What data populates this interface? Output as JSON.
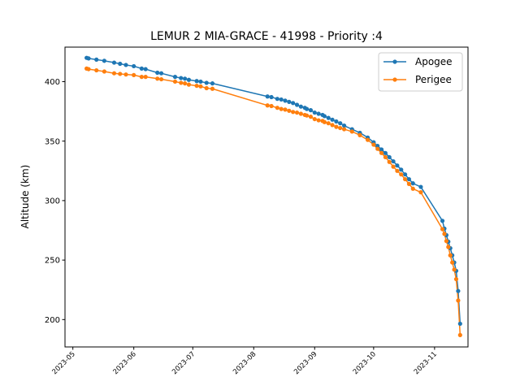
{
  "chart_data": {
    "type": "line",
    "title": "LEMUR 2 MIA-GRACE - 41998 - Priority :4",
    "xlabel": "",
    "ylabel": "Altitude (km)",
    "x_type": "date",
    "xlim": [
      "2023-04-27",
      "2023-11-18"
    ],
    "ylim": [
      177,
      429
    ],
    "x_ticks": [
      "2023-05",
      "2023-06",
      "2023-07",
      "2023-08",
      "2023-09",
      "2023-10",
      "2023-11"
    ],
    "y_ticks": [
      200,
      250,
      300,
      350,
      400
    ],
    "grid": false,
    "legend": "top-right",
    "series": [
      {
        "name": "Apogee",
        "color": "#1f77b4",
        "points": [
          [
            "2023-05-08",
            420
          ],
          [
            "2023-05-09",
            419.5
          ],
          [
            "2023-05-13",
            418.5
          ],
          [
            "2023-05-17",
            417.5
          ],
          [
            "2023-05-22",
            416
          ],
          [
            "2023-05-25",
            415
          ],
          [
            "2023-05-28",
            414
          ],
          [
            "2023-06-01",
            413
          ],
          [
            "2023-06-05",
            411
          ],
          [
            "2023-06-07",
            410.5
          ],
          [
            "2023-06-13",
            407.5
          ],
          [
            "2023-06-15",
            407
          ],
          [
            "2023-06-22",
            404
          ],
          [
            "2023-06-25",
            403
          ],
          [
            "2023-06-27",
            402.5
          ],
          [
            "2023-06-29",
            401.5
          ],
          [
            "2023-07-03",
            400.5
          ],
          [
            "2023-07-05",
            400
          ],
          [
            "2023-07-08",
            399
          ],
          [
            "2023-07-11",
            398.5
          ],
          [
            "2023-08-08",
            387.5
          ],
          [
            "2023-08-10",
            387
          ],
          [
            "2023-08-13",
            385.5
          ],
          [
            "2023-08-15",
            385
          ],
          [
            "2023-08-17",
            384
          ],
          [
            "2023-08-19",
            383
          ],
          [
            "2023-08-21",
            382
          ],
          [
            "2023-08-23",
            380.5
          ],
          [
            "2023-08-25",
            379
          ],
          [
            "2023-08-27",
            378
          ],
          [
            "2023-08-28",
            377
          ],
          [
            "2023-08-30",
            376
          ],
          [
            "2023-09-01",
            374
          ],
          [
            "2023-09-03",
            373
          ],
          [
            "2023-09-05",
            372
          ],
          [
            "2023-09-06",
            371
          ],
          [
            "2023-09-08",
            369.5
          ],
          [
            "2023-09-10",
            368
          ],
          [
            "2023-09-12",
            366.5
          ],
          [
            "2023-09-14",
            365
          ],
          [
            "2023-09-16",
            363
          ],
          [
            "2023-09-20",
            360
          ],
          [
            "2023-09-24",
            357
          ],
          [
            "2023-09-28",
            353
          ],
          [
            "2023-10-01",
            349
          ],
          [
            "2023-10-03",
            346
          ],
          [
            "2023-10-05",
            343
          ],
          [
            "2023-10-07",
            340
          ],
          [
            "2023-10-09",
            336.5
          ],
          [
            "2023-10-11",
            333
          ],
          [
            "2023-10-13",
            329.5
          ],
          [
            "2023-10-15",
            326
          ],
          [
            "2023-10-17",
            322
          ],
          [
            "2023-10-19",
            318
          ],
          [
            "2023-10-21",
            314.5
          ],
          [
            "2023-10-25",
            311.5
          ],
          [
            "2023-11-05",
            283
          ],
          [
            "2023-11-06",
            276.5
          ],
          [
            "2023-11-07",
            271
          ],
          [
            "2023-11-08",
            265.5
          ],
          [
            "2023-11-09",
            260
          ],
          [
            "2023-11-10",
            254
          ],
          [
            "2023-11-11",
            248
          ],
          [
            "2023-11-12",
            241
          ],
          [
            "2023-11-13",
            224
          ],
          [
            "2023-11-14",
            196.5
          ]
        ]
      },
      {
        "name": "Perigee",
        "color": "#ff7f0e",
        "points": [
          [
            "2023-05-08",
            411
          ],
          [
            "2023-05-09",
            410.5
          ],
          [
            "2023-05-13",
            409.5
          ],
          [
            "2023-05-17",
            408.5
          ],
          [
            "2023-05-22",
            407
          ],
          [
            "2023-05-25",
            406.5
          ],
          [
            "2023-05-28",
            406
          ],
          [
            "2023-06-01",
            405.5
          ],
          [
            "2023-06-05",
            404
          ],
          [
            "2023-06-07",
            404
          ],
          [
            "2023-06-13",
            402.5
          ],
          [
            "2023-06-15",
            402
          ],
          [
            "2023-06-22",
            400
          ],
          [
            "2023-06-25",
            399
          ],
          [
            "2023-06-27",
            398.5
          ],
          [
            "2023-06-29",
            397.5
          ],
          [
            "2023-07-03",
            396.5
          ],
          [
            "2023-07-05",
            396
          ],
          [
            "2023-07-08",
            394.5
          ],
          [
            "2023-07-11",
            394
          ],
          [
            "2023-08-08",
            380
          ],
          [
            "2023-08-10",
            379.5
          ],
          [
            "2023-08-13",
            378
          ],
          [
            "2023-08-15",
            377
          ],
          [
            "2023-08-17",
            376.5
          ],
          [
            "2023-08-19",
            375.5
          ],
          [
            "2023-08-21",
            374.5
          ],
          [
            "2023-08-23",
            374
          ],
          [
            "2023-08-25",
            373
          ],
          [
            "2023-08-27",
            372
          ],
          [
            "2023-08-28",
            371.5
          ],
          [
            "2023-08-30",
            370.5
          ],
          [
            "2023-09-01",
            368.5
          ],
          [
            "2023-09-03",
            367.5
          ],
          [
            "2023-09-05",
            367
          ],
          [
            "2023-09-06",
            366
          ],
          [
            "2023-09-08",
            365
          ],
          [
            "2023-09-10",
            363.5
          ],
          [
            "2023-09-12",
            362
          ],
          [
            "2023-09-14",
            361
          ],
          [
            "2023-09-16",
            360
          ],
          [
            "2023-09-20",
            358
          ],
          [
            "2023-09-24",
            355
          ],
          [
            "2023-09-28",
            351
          ],
          [
            "2023-10-01",
            347
          ],
          [
            "2023-10-03",
            343.5
          ],
          [
            "2023-10-05",
            340
          ],
          [
            "2023-10-07",
            336.5
          ],
          [
            "2023-10-09",
            332.5
          ],
          [
            "2023-10-11",
            328.5
          ],
          [
            "2023-10-13",
            325
          ],
          [
            "2023-10-15",
            322
          ],
          [
            "2023-10-17",
            318
          ],
          [
            "2023-10-19",
            314
          ],
          [
            "2023-10-21",
            310
          ],
          [
            "2023-10-25",
            307
          ],
          [
            "2023-11-05",
            276
          ],
          [
            "2023-11-06",
            272
          ],
          [
            "2023-11-07",
            266
          ],
          [
            "2023-11-08",
            261
          ],
          [
            "2023-11-09",
            254
          ],
          [
            "2023-11-10",
            248
          ],
          [
            "2023-11-11",
            242
          ],
          [
            "2023-11-12",
            234
          ],
          [
            "2023-11-13",
            216
          ],
          [
            "2023-11-14",
            187
          ]
        ]
      }
    ]
  }
}
